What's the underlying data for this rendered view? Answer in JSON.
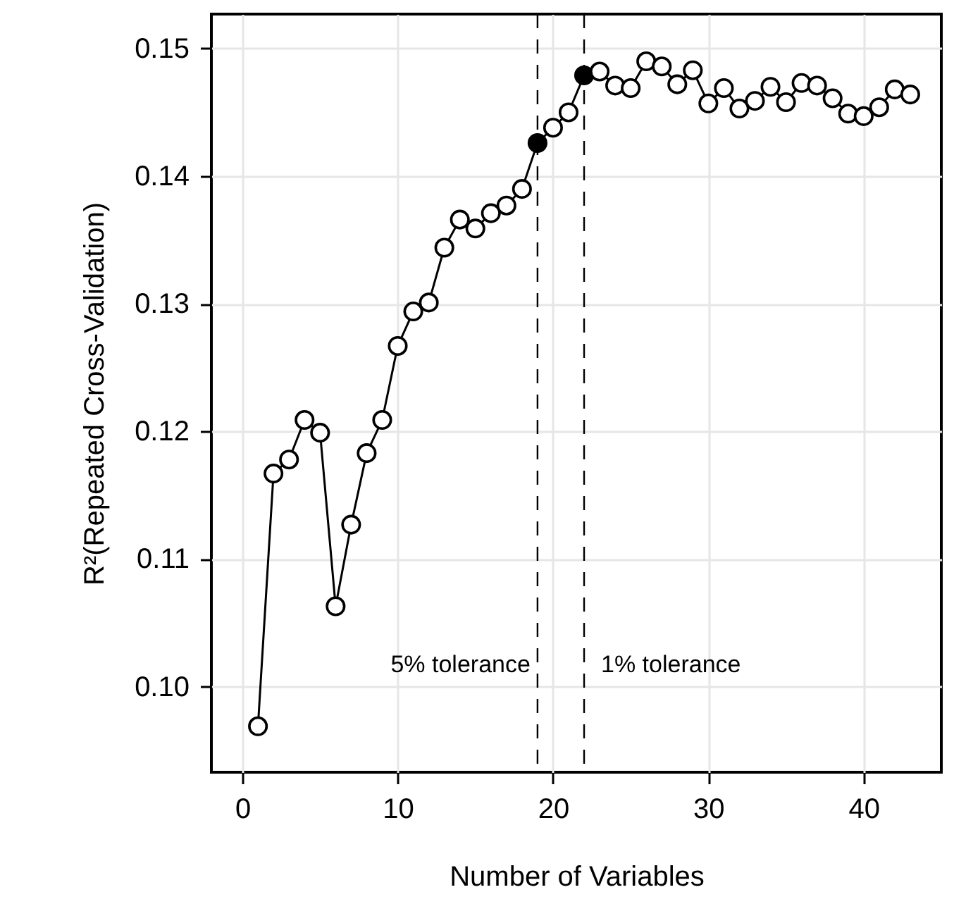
{
  "chart_data": {
    "type": "line",
    "xlabel": "Number of Variables",
    "ylabel": "R²(Repeated Cross-Validation)",
    "xlim": [
      -2,
      45
    ],
    "xticks": [
      0,
      10,
      20,
      30,
      40
    ],
    "ylim": [
      0.0933,
      0.1527
    ],
    "yticks": [
      {
        "value": 0.1,
        "label": "0.10"
      },
      0.11,
      0.12,
      0.13,
      0.14,
      0.15
    ],
    "grid": true,
    "marker": "circle",
    "line_style": "solid",
    "series": [
      {
        "color": "#000000",
        "x": [
          1,
          2,
          3,
          4,
          5,
          6,
          7,
          8,
          9,
          10,
          11,
          12,
          13,
          14,
          15,
          16,
          17,
          18,
          19,
          20,
          21,
          22,
          23,
          24,
          25,
          26,
          27,
          28,
          29,
          30,
          31,
          32,
          33,
          34,
          35,
          36,
          37,
          38,
          39,
          40,
          41,
          42,
          43
        ],
        "values": [
          0.0969,
          0.1167,
          0.1178,
          0.1209,
          0.1199,
          0.1063,
          0.1127,
          0.1183,
          0.1209,
          0.1267,
          0.1294,
          0.1301,
          0.1344,
          0.1366,
          0.1359,
          0.1371,
          0.1377,
          0.139,
          0.1426,
          0.1438,
          0.145,
          0.1479,
          0.1482,
          0.1471,
          0.1469,
          0.149,
          0.1486,
          0.1472,
          0.1483,
          0.1457,
          0.1469,
          0.1453,
          0.1459,
          0.147,
          0.1458,
          0.1473,
          0.1471,
          0.1461,
          0.1449,
          0.1447,
          0.1454,
          0.1468,
          0.1464
        ]
      },
      {
        "type": "scatter",
        "color": "#000000",
        "x": [
          19,
          22
        ],
        "values": [
          0.1426,
          0.1479
        ]
      }
    ],
    "ref_lines": [
      {
        "axis": "x",
        "value": 19,
        "label": "5% tolerance",
        "line_style": "dashed",
        "color": "#000000"
      },
      {
        "axis": "x",
        "value": 22,
        "label": "1% tolerance",
        "line_style": "dashed",
        "color": "#000000"
      }
    ]
  }
}
